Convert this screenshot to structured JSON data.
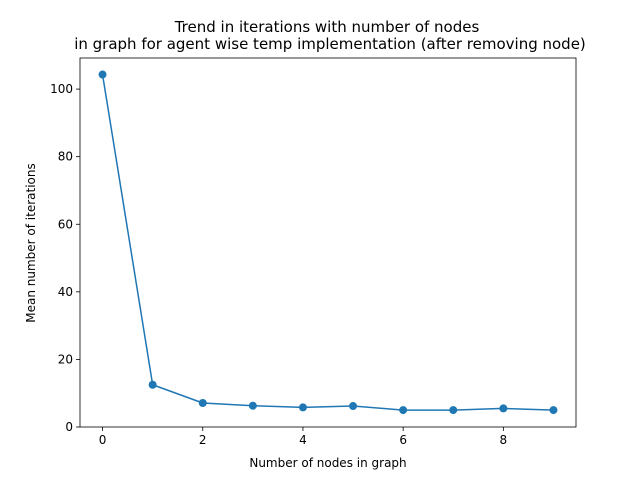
{
  "chart_data": {
    "type": "line",
    "title_line1": "Trend in iterations with number of nodes",
    "title_line2": "in graph for agent wise temp implementation (after removing node)",
    "xlabel": "Number of nodes in graph",
    "ylabel": "Mean number of iterations",
    "xlim": [
      -0.45,
      9.45
    ],
    "ylim": [
      0,
      109.2
    ],
    "x_ticks": [
      0,
      2,
      4,
      6,
      8
    ],
    "y_ticks": [
      0,
      20,
      40,
      60,
      80,
      100
    ],
    "grid": false,
    "series": [
      {
        "color": "#1f77b4",
        "marker": "circle",
        "x": [
          0,
          1,
          2,
          3,
          4,
          5,
          6,
          7,
          8,
          9
        ],
        "y": [
          104.3,
          12.5,
          7.1,
          6.3,
          5.8,
          6.2,
          5.0,
          5.0,
          5.5,
          5.0
        ]
      }
    ]
  }
}
